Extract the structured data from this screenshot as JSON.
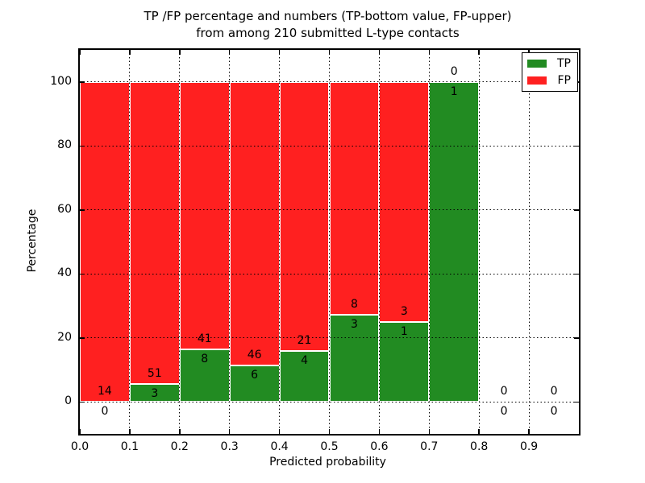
{
  "chart_data": {
    "type": "bar",
    "subtype": "stacked-percentage",
    "title_line1": "TP /FP percentage and numbers (TP-bottom value, FP-upper)",
    "title_line2": "from among 210 submitted L-type contacts",
    "xlabel": "Predicted probability",
    "ylabel": "Percentage",
    "xlim": [
      0.0,
      1.0
    ],
    "ylim": [
      -10,
      110
    ],
    "x_ticks": [
      0.0,
      0.1,
      0.2,
      0.3,
      0.4,
      0.5,
      0.6,
      0.7,
      0.8,
      0.9
    ],
    "y_ticks": [
      0,
      20,
      40,
      60,
      80,
      100
    ],
    "grid": true,
    "total_contacts": 210,
    "legend": {
      "position": "upper right",
      "items": [
        {
          "label": "TP",
          "color": "#228B22"
        },
        {
          "label": "FP",
          "color": "#FF2020"
        }
      ]
    },
    "bins": [
      {
        "range": [
          0.0,
          0.1
        ],
        "tp": 0,
        "fp": 14,
        "tp_pct": 0
      },
      {
        "range": [
          0.1,
          0.2
        ],
        "tp": 3,
        "fp": 51,
        "tp_pct": 5.6
      },
      {
        "range": [
          0.2,
          0.3
        ],
        "tp": 8,
        "fp": 41,
        "tp_pct": 16.3
      },
      {
        "range": [
          0.3,
          0.4
        ],
        "tp": 6,
        "fp": 46,
        "tp_pct": 11.5
      },
      {
        "range": [
          0.4,
          0.5
        ],
        "tp": 4,
        "fp": 21,
        "tp_pct": 16.0
      },
      {
        "range": [
          0.5,
          0.6
        ],
        "tp": 3,
        "fp": 8,
        "tp_pct": 27.3
      },
      {
        "range": [
          0.6,
          0.7
        ],
        "tp": 1,
        "fp": 3,
        "tp_pct": 25.0
      },
      {
        "range": [
          0.7,
          0.8
        ],
        "tp": 1,
        "fp": 0,
        "tp_pct": 100
      },
      {
        "range": [
          0.8,
          0.9
        ],
        "tp": 0,
        "fp": 0,
        "tp_pct": 0
      },
      {
        "range": [
          0.9,
          1.0
        ],
        "tp": 0,
        "fp": 0,
        "tp_pct": 0
      }
    ],
    "colors": {
      "tp_bar": "#228B22",
      "fp_bar": "#FF2020",
      "bar_edge": "#FFFFFF",
      "grid": "#000000",
      "background": "#FFFFFF",
      "text": "#000000"
    }
  }
}
